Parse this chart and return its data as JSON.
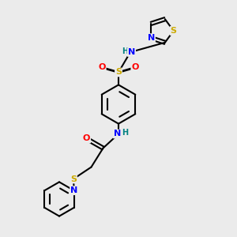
{
  "background_color": "#ebebeb",
  "bond_color": "#000000",
  "atom_colors": {
    "N": "#0000ff",
    "O": "#ff0000",
    "S": "#ccaa00",
    "H": "#008080",
    "C": "#000000"
  },
  "font_size_atoms": 8,
  "fig_size": [
    3.0,
    3.0
  ],
  "dpi": 100
}
